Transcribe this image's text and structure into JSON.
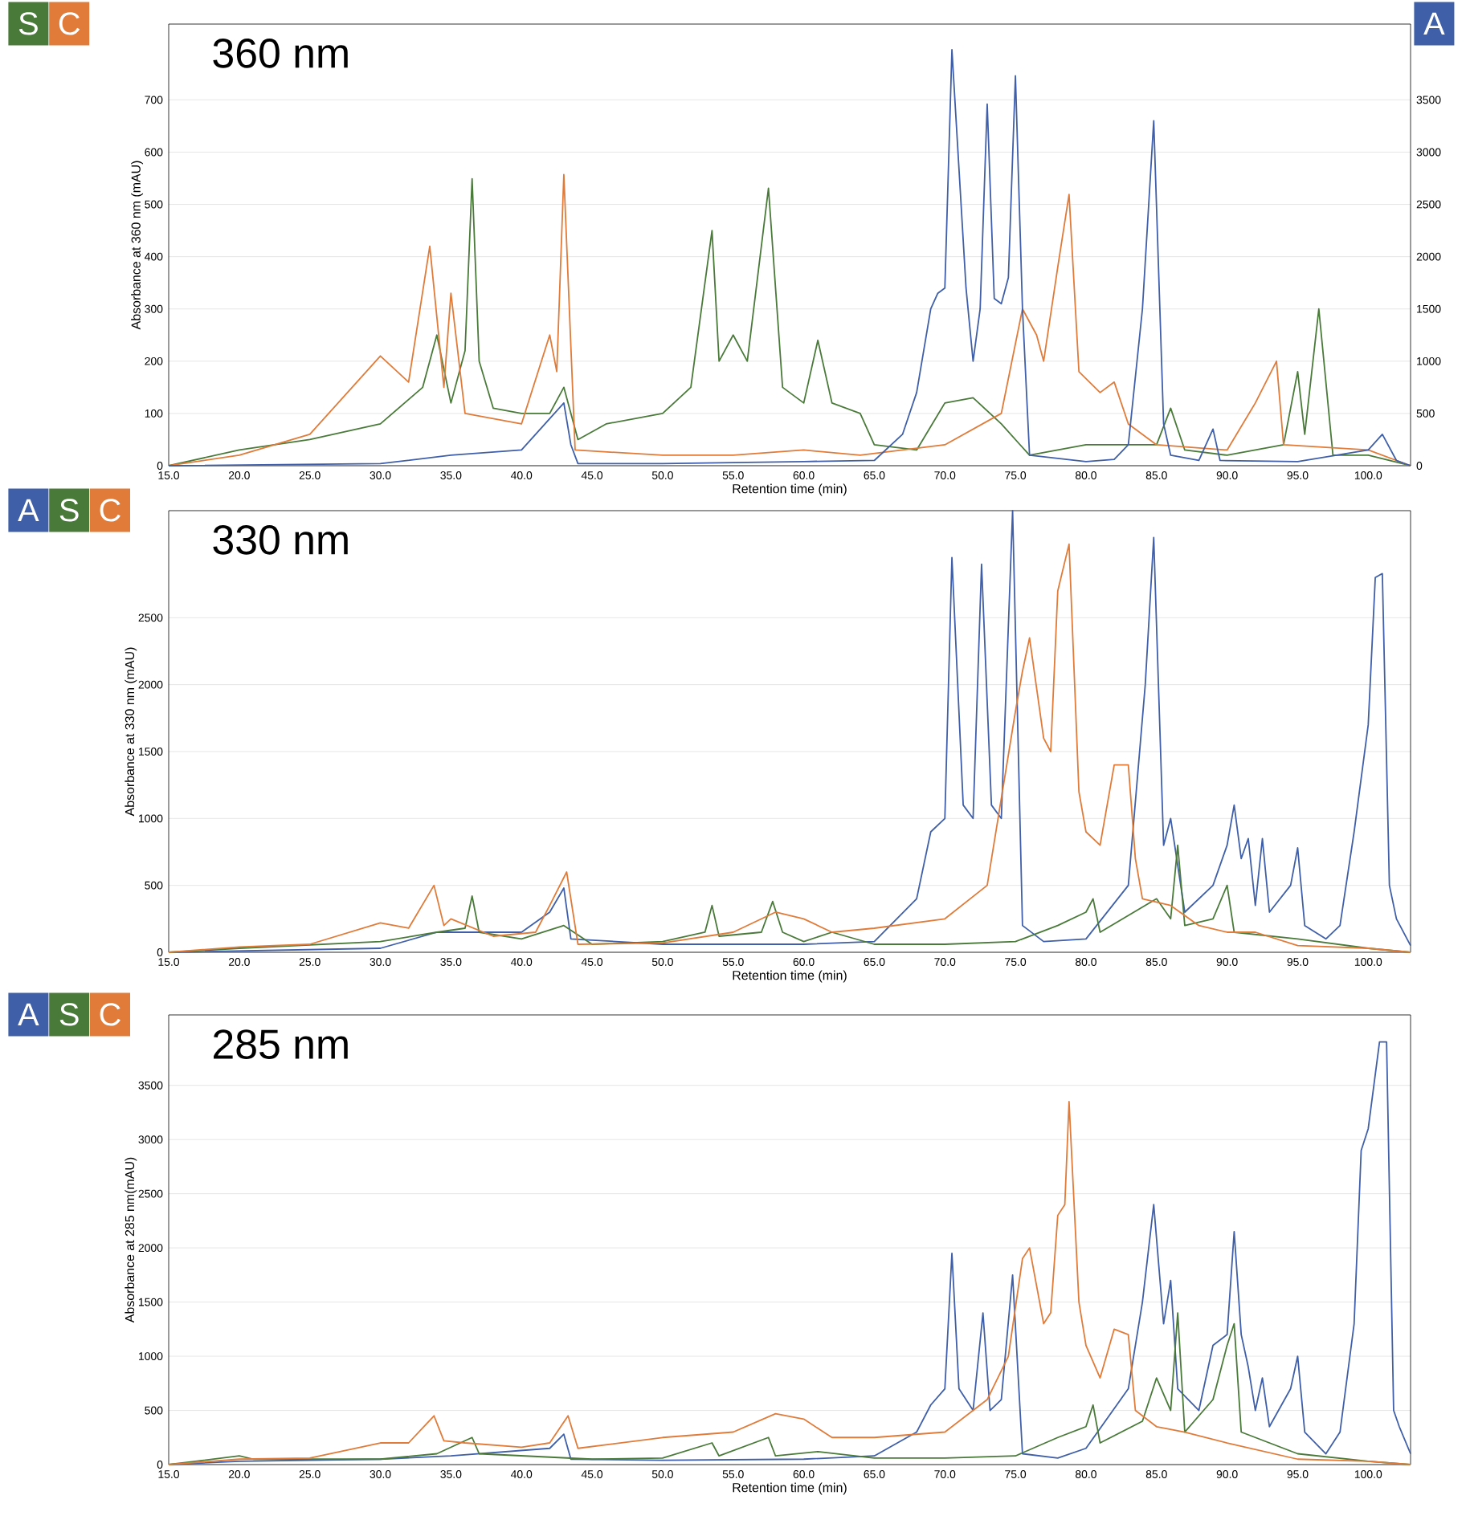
{
  "chart_data": [
    {
      "type": "line",
      "title": "360 nm",
      "xlabel": "Retention time (min)",
      "ylabel": "Absorbance at 360 nm (mAU)",
      "xlim": [
        15,
        103
      ],
      "xticks": [
        {
          "value": 15,
          "label": "15.0"
        },
        {
          "value": 20,
          "label": "20.0"
        },
        {
          "value": 25,
          "label": "25.0"
        },
        {
          "value": 30,
          "label": "30.0"
        },
        {
          "value": 35,
          "label": "35.0"
        },
        {
          "value": 40,
          "label": "40.0"
        },
        {
          "value": 45,
          "label": "45.0"
        },
        {
          "value": 50,
          "label": "50.0"
        },
        {
          "value": 55,
          "label": "55.0"
        },
        {
          "value": 60,
          "label": "60.0"
        },
        {
          "value": 65,
          "label": "65.0"
        },
        {
          "value": 70,
          "label": "70.0"
        },
        {
          "value": 75,
          "label": "75.0"
        },
        {
          "value": 80,
          "label": "80.0"
        },
        {
          "value": 85,
          "label": "85.0"
        },
        {
          "value": 90,
          "label": "90.0"
        },
        {
          "value": 95,
          "label": "95.0"
        },
        {
          "value": 100,
          "label": "100.0"
        }
      ],
      "ylim": [
        0,
        845
      ],
      "yticks": [
        0,
        100,
        200,
        300,
        400,
        500,
        600,
        700
      ],
      "y2lim": [
        0,
        4225
      ],
      "y2ticks": [
        0,
        500,
        1000,
        1500,
        2000,
        2500,
        3000,
        3500
      ],
      "grid": "y",
      "legend": "top left",
      "series": [
        {
          "name": "S",
          "color": "#4a7a3a",
          "x": [
            15,
            20,
            25,
            30,
            33,
            34,
            35,
            36,
            36.5,
            37,
            38,
            40,
            42,
            43,
            44,
            46,
            50,
            52,
            53.5,
            54,
            55,
            56,
            57.5,
            58.5,
            60,
            61,
            62,
            64,
            65,
            68,
            70,
            72,
            74,
            76,
            80,
            85,
            86,
            87,
            90,
            94,
            95,
            95.5,
            96.5,
            97.5,
            100,
            103
          ],
          "values": [
            0,
            30,
            50,
            80,
            150,
            250,
            120,
            220,
            549,
            200,
            110,
            100,
            100,
            150,
            50,
            80,
            100,
            150,
            450,
            200,
            250,
            200,
            531,
            150,
            120,
            240,
            120,
            100,
            40,
            30,
            120,
            130,
            80,
            20,
            40,
            40,
            110,
            30,
            20,
            40,
            180,
            60,
            300,
            20,
            20,
            0
          ]
        },
        {
          "name": "C",
          "color": "#e07b39",
          "x": [
            15,
            20,
            25,
            28,
            30,
            32,
            33.5,
            34.5,
            35,
            36,
            40,
            42,
            42.5,
            43,
            43.8,
            50,
            55,
            60,
            64,
            70,
            74,
            75.5,
            76.5,
            77,
            78,
            78.8,
            79.5,
            81,
            82,
            83,
            85,
            90,
            92,
            93.5,
            94,
            100,
            103
          ],
          "values": [
            0,
            20,
            60,
            150,
            210,
            160,
            420,
            150,
            330,
            100,
            80,
            250,
            180,
            557,
            30,
            20,
            20,
            30,
            20,
            40,
            100,
            300,
            250,
            200,
            380,
            519,
            180,
            140,
            160,
            80,
            40,
            30,
            120,
            200,
            40,
            30,
            0
          ]
        },
        {
          "name": "A",
          "color": "#3f5fa8",
          "axis": "y2",
          "x": [
            15,
            30,
            35,
            40,
            41,
            42,
            43,
            43.5,
            44,
            50,
            55,
            60,
            65,
            67,
            68,
            69,
            69.5,
            70,
            70.5,
            71.5,
            72,
            72.5,
            73,
            73.5,
            74,
            74.5,
            75,
            75.5,
            76,
            80,
            82,
            83,
            84,
            84.8,
            85.5,
            86,
            88,
            89,
            89.5,
            95,
            100,
            101,
            102,
            103
          ],
          "values": [
            0,
            20,
            100,
            150,
            300,
            450,
            600,
            200,
            20,
            20,
            30,
            40,
            50,
            300,
            700,
            1500,
            1650,
            1700,
            3980,
            1700,
            1000,
            1500,
            3460,
            1600,
            1550,
            1800,
            3730,
            1500,
            100,
            40,
            60,
            200,
            1500,
            3300,
            400,
            100,
            50,
            350,
            50,
            40,
            150,
            300,
            50,
            0
          ]
        }
      ]
    },
    {
      "type": "line",
      "title": "330 nm",
      "xlabel": "Retention time (min)",
      "ylabel": "Absorbance at 330 nm (mAU)",
      "xlim": [
        15,
        103
      ],
      "xticks": [
        {
          "value": 15,
          "label": "15.0"
        },
        {
          "value": 20,
          "label": "20.0"
        },
        {
          "value": 25,
          "label": "25.0"
        },
        {
          "value": 30,
          "label": "30.0"
        },
        {
          "value": 35,
          "label": "35.0"
        },
        {
          "value": 40,
          "label": "40.0"
        },
        {
          "value": 45,
          "label": "45.0"
        },
        {
          "value": 50,
          "label": "50.0"
        },
        {
          "value": 55,
          "label": "55.0"
        },
        {
          "value": 60,
          "label": "60.0"
        },
        {
          "value": 65,
          "label": "65.0"
        },
        {
          "value": 70,
          "label": "70.0"
        },
        {
          "value": 75,
          "label": "75.0"
        },
        {
          "value": 80,
          "label": "80.0"
        },
        {
          "value": 85,
          "label": "85.0"
        },
        {
          "value": 90,
          "label": "90.0"
        },
        {
          "value": 95,
          "label": "95.0"
        },
        {
          "value": 100,
          "label": "100.0"
        }
      ],
      "ylim": [
        0,
        3300
      ],
      "yticks": [
        0,
        500,
        1000,
        1500,
        2000,
        2500
      ],
      "grid": "y",
      "legend": "top left",
      "series": [
        {
          "name": "A",
          "color": "#3f5fa8",
          "x": [
            15,
            30,
            34,
            40,
            42,
            43,
            43.5,
            50,
            60,
            65,
            68,
            69,
            70,
            70.5,
            71.3,
            72,
            72.6,
            73.3,
            74,
            74.8,
            75.5,
            77,
            80,
            83,
            84.2,
            84.8,
            85.5,
            86,
            87,
            89,
            90,
            90.5,
            91,
            91.5,
            92,
            92.5,
            93,
            94.5,
            95,
            95.5,
            97,
            98,
            99,
            100,
            100.5,
            101,
            101.5,
            102,
            103
          ],
          "values": [
            0,
            30,
            150,
            150,
            300,
            480,
            100,
            60,
            60,
            80,
            400,
            900,
            1000,
            2950,
            1100,
            1000,
            2900,
            1100,
            1000,
            3300,
            200,
            80,
            100,
            500,
            2000,
            3100,
            800,
            1000,
            300,
            500,
            800,
            1100,
            700,
            850,
            350,
            850,
            300,
            500,
            780,
            200,
            100,
            200,
            900,
            1700,
            2800,
            2830,
            500,
            250,
            50
          ]
        },
        {
          "name": "S",
          "color": "#4a7a3a",
          "x": [
            15,
            20,
            30,
            34,
            36,
            36.5,
            37,
            40,
            43,
            45,
            50,
            53,
            53.5,
            54,
            57,
            57.8,
            58.5,
            60,
            62,
            65,
            70,
            75,
            78,
            80,
            80.5,
            81,
            85,
            86,
            86.5,
            87,
            89,
            90,
            90.5,
            95,
            100,
            103
          ],
          "values": [
            0,
            30,
            80,
            150,
            180,
            420,
            150,
            100,
            200,
            60,
            80,
            150,
            350,
            120,
            150,
            380,
            150,
            80,
            150,
            60,
            60,
            80,
            200,
            300,
            400,
            150,
            400,
            250,
            800,
            200,
            250,
            500,
            150,
            100,
            30,
            0
          ]
        },
        {
          "name": "C",
          "color": "#e07b39",
          "x": [
            15,
            20,
            25,
            30,
            32,
            33.8,
            34.5,
            35,
            38,
            41,
            42,
            43.2,
            44,
            50,
            55,
            58,
            60,
            62,
            65,
            70,
            73,
            75,
            75.5,
            76,
            77,
            77.5,
            78,
            78.8,
            79.5,
            80,
            81,
            82,
            83,
            83.5,
            84,
            86,
            88,
            90,
            92,
            95,
            100,
            103
          ],
          "values": [
            0,
            40,
            60,
            220,
            180,
            500,
            200,
            250,
            120,
            150,
            350,
            600,
            60,
            70,
            150,
            300,
            250,
            150,
            180,
            250,
            500,
            1800,
            2100,
            2350,
            1600,
            1500,
            2700,
            3050,
            1200,
            900,
            800,
            1400,
            1400,
            700,
            400,
            350,
            200,
            150,
            150,
            50,
            30,
            0
          ]
        }
      ]
    },
    {
      "type": "line",
      "title": "285 nm",
      "xlabel": "Retention time (min)",
      "ylabel": "Absorbance at 285 nm(mAU)",
      "xlim": [
        15,
        103
      ],
      "xticks": [
        {
          "value": 15,
          "label": "15.0"
        },
        {
          "value": 20,
          "label": "20.0"
        },
        {
          "value": 25,
          "label": "25.0"
        },
        {
          "value": 30,
          "label": "30.0"
        },
        {
          "value": 35,
          "label": "35.0"
        },
        {
          "value": 40,
          "label": "40.0"
        },
        {
          "value": 45,
          "label": "45.0"
        },
        {
          "value": 50,
          "label": "50.0"
        },
        {
          "value": 55,
          "label": "55.0"
        },
        {
          "value": 60,
          "label": "60.0"
        },
        {
          "value": 65,
          "label": "65.0"
        },
        {
          "value": 70,
          "label": "70.0"
        },
        {
          "value": 75,
          "label": "75.0"
        },
        {
          "value": 80,
          "label": "80.0"
        },
        {
          "value": 85,
          "label": "85.0"
        },
        {
          "value": 90,
          "label": "90.0"
        },
        {
          "value": 95,
          "label": "95.0"
        },
        {
          "value": 100,
          "label": "100.0"
        }
      ],
      "ylim": [
        0,
        4150
      ],
      "yticks": [
        0,
        500,
        1000,
        1500,
        2000,
        2500,
        3000,
        3500
      ],
      "grid": "y",
      "legend": "top left",
      "series": [
        {
          "name": "A",
          "color": "#3f5fa8",
          "x": [
            15,
            20,
            30,
            35,
            42,
            43,
            43.5,
            50,
            60,
            65,
            68,
            69,
            70,
            70.5,
            71,
            72,
            72.7,
            73.2,
            74,
            74.8,
            75.5,
            78,
            80,
            83,
            84,
            84.8,
            85.5,
            86,
            86.5,
            88,
            89,
            90,
            90.5,
            91,
            91.5,
            92,
            92.5,
            93,
            94.5,
            95,
            95.5,
            97,
            98,
            99,
            99.5,
            100,
            100.8,
            101.3,
            101.8,
            102.2,
            103
          ],
          "values": [
            0,
            30,
            50,
            80,
            150,
            280,
            50,
            40,
            50,
            80,
            300,
            550,
            700,
            1950,
            700,
            500,
            1400,
            500,
            600,
            1750,
            100,
            60,
            150,
            700,
            1500,
            2400,
            1300,
            1700,
            700,
            500,
            1100,
            1200,
            2150,
            1200,
            900,
            500,
            800,
            350,
            700,
            1000,
            300,
            100,
            300,
            1300,
            2900,
            3100,
            3900,
            3900,
            500,
            350,
            100
          ]
        },
        {
          "name": "S",
          "color": "#4a7a3a",
          "x": [
            15,
            20,
            21,
            30,
            34,
            36.5,
            37,
            45,
            50,
            53.5,
            54,
            57.5,
            58,
            61,
            65,
            70,
            75,
            78,
            80,
            80.5,
            81,
            84,
            85,
            86,
            86.5,
            87,
            89,
            90,
            90.5,
            91,
            93,
            95,
            100,
            103
          ],
          "values": [
            0,
            80,
            50,
            50,
            100,
            250,
            100,
            50,
            60,
            200,
            80,
            250,
            80,
            120,
            60,
            60,
            80,
            250,
            350,
            550,
            200,
            400,
            800,
            500,
            1400,
            300,
            600,
            1100,
            1300,
            300,
            200,
            100,
            30,
            0
          ]
        },
        {
          "name": "C",
          "color": "#e07b39",
          "x": [
            15,
            20,
            25,
            30,
            32,
            33.8,
            34.5,
            36,
            40,
            42,
            43.3,
            44,
            50,
            55,
            58,
            60,
            62,
            65,
            70,
            73,
            74.5,
            75.5,
            76,
            77,
            77.5,
            78,
            78.5,
            78.8,
            79.5,
            80,
            81,
            82,
            83,
            83.5,
            85,
            87,
            90,
            95,
            100,
            103
          ],
          "values": [
            0,
            50,
            60,
            200,
            200,
            450,
            220,
            200,
            160,
            200,
            450,
            150,
            250,
            300,
            470,
            420,
            250,
            250,
            300,
            600,
            1000,
            1900,
            2000,
            1300,
            1400,
            2300,
            2400,
            3350,
            1500,
            1100,
            800,
            1250,
            1200,
            500,
            350,
            300,
            200,
            50,
            30,
            0
          ]
        }
      ]
    }
  ]
}
